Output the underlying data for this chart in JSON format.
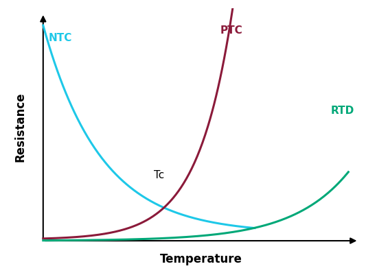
{
  "title": "",
  "xlabel": "Temperature",
  "ylabel": "Resistance",
  "xlabel_fontsize": 12,
  "ylabel_fontsize": 12,
  "background_color": "#ffffff",
  "ntc_color": "#1EC8E8",
  "ptc_color": "#8B1A3A",
  "rtd_color": "#00A878",
  "ntc_label": "NTC",
  "ptc_label": "PTC",
  "rtd_label": "RTD",
  "tc_label": "Tc",
  "line_width": 2.2
}
